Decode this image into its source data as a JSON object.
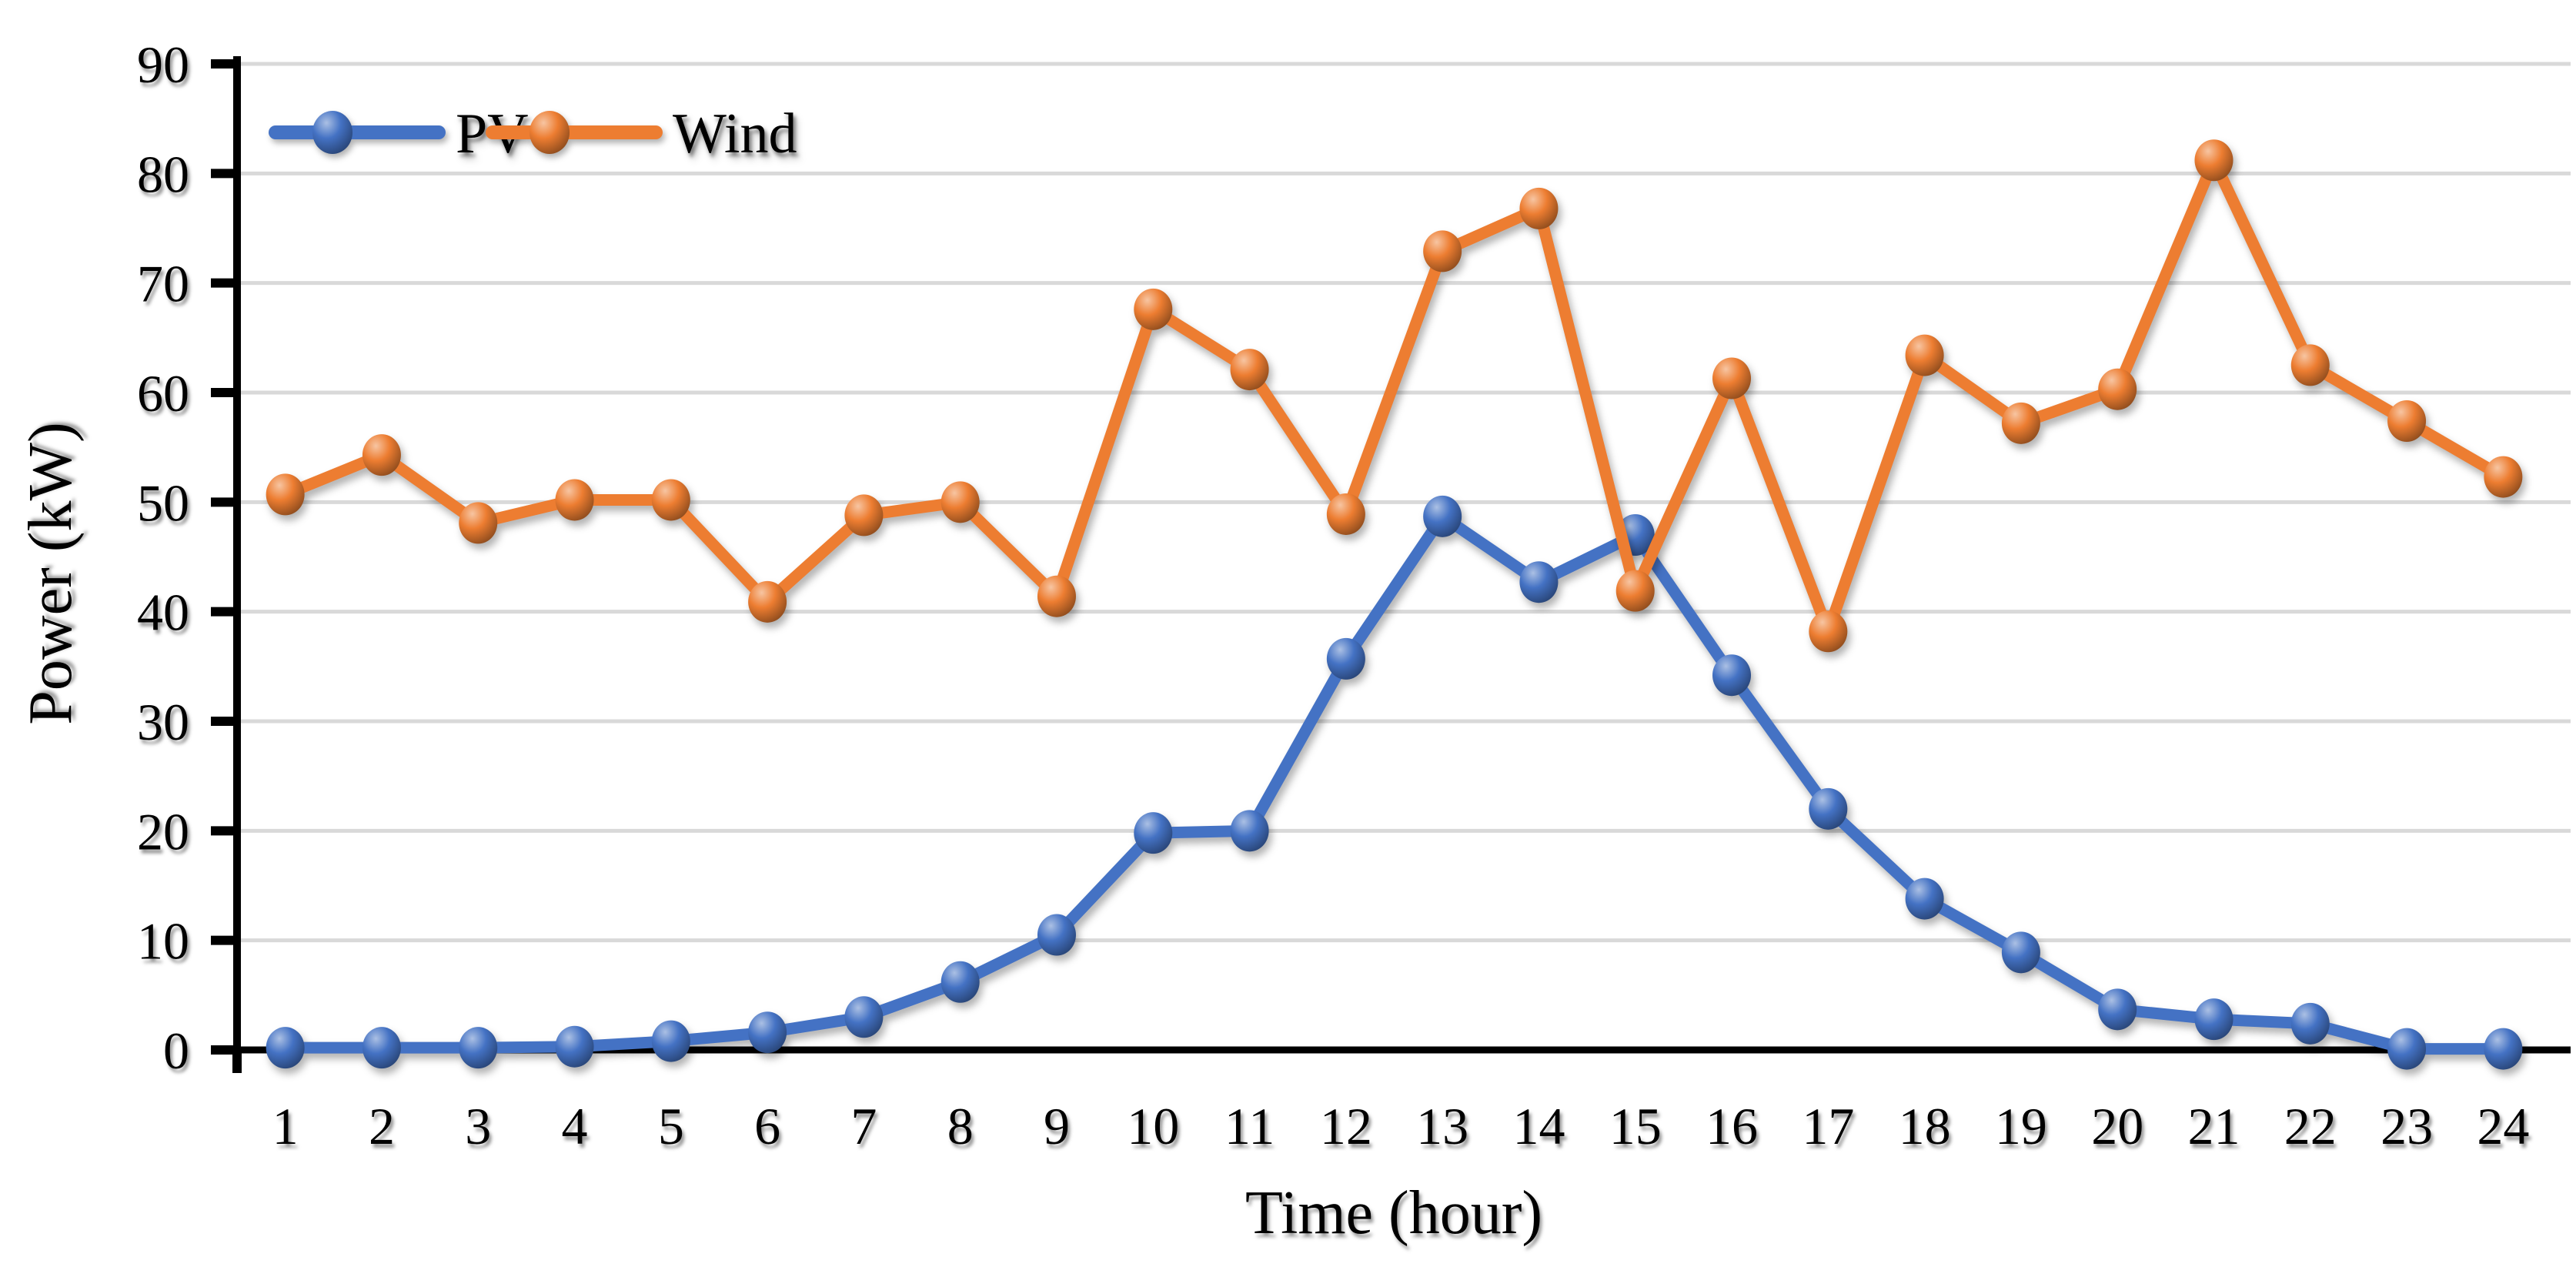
{
  "page": {
    "background": "#ffffff"
  },
  "chart_data": {
    "type": "line",
    "title": "",
    "xlabel": "Time (hour)",
    "ylabel": "Power  (kW)",
    "categories": [
      1,
      2,
      3,
      4,
      5,
      6,
      7,
      8,
      9,
      10,
      11,
      12,
      13,
      14,
      15,
      16,
      17,
      18,
      19,
      20,
      21,
      22,
      23,
      24
    ],
    "series": [
      {
        "name": "PV",
        "color": "#4472C4",
        "marker": "sphere",
        "values": [
          0.2,
          0.2,
          0.2,
          0.3,
          0.8,
          1.6,
          3.0,
          6.2,
          10.5,
          19.8,
          20.0,
          35.7,
          48.7,
          42.7,
          47.0,
          34.2,
          22.0,
          13.8,
          8.9,
          3.7,
          2.8,
          2.4,
          0.1,
          0.1
        ]
      },
      {
        "name": "Wind",
        "color": "#ED7D31",
        "marker": "sphere",
        "values": [
          50.7,
          54.3,
          48.1,
          50.2,
          50.2,
          40.9,
          48.8,
          50.0,
          41.4,
          67.6,
          62.1,
          48.9,
          72.9,
          76.8,
          41.9,
          61.3,
          38.2,
          63.4,
          57.2,
          60.3,
          81.2,
          62.5,
          57.4,
          52.3
        ]
      }
    ],
    "ylim": [
      0,
      90
    ],
    "ytick_step": 10,
    "grid": "horizontal",
    "gridline_color": "#D9D9D9",
    "axis_color": "#000000",
    "legend_position": "top-left",
    "line_width": 15,
    "marker_radius": 26
  }
}
